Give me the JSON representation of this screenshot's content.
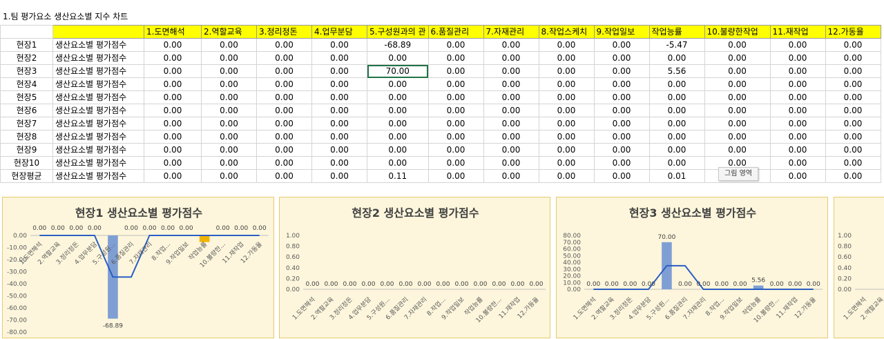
{
  "sheet_title": "1.팀 평가요소 생산요소별 지수 차트",
  "headers": [
    "1.도면해석",
    "2.역할교육",
    "3.정리정돈",
    "4.업무분담",
    "5.구성원과의 관",
    "6.품질관리",
    "7.자재관리",
    "8.작업스케치",
    "9.작업일보",
    "작업능률",
    "10.불량한작업",
    "11.재작업",
    "12.가동율"
  ],
  "rows": [
    {
      "site": "현장1",
      "label": "생산요소별 평가점수",
      "values": [
        "0.00",
        "0.00",
        "0.00",
        "0.00",
        "-68.89",
        "0.00",
        "0.00",
        "0.00",
        "0.00",
        "-5.47",
        "0.00",
        "0.00",
        "0.00"
      ]
    },
    {
      "site": "현장2",
      "label": "생산요소별 평가점수",
      "values": [
        "0.00",
        "0.00",
        "0.00",
        "0.00",
        "0.00",
        "0.00",
        "0.00",
        "0.00",
        "0.00",
        "0.00",
        "0.00",
        "0.00",
        "0.00"
      ]
    },
    {
      "site": "현장3",
      "label": "생산요소별 평가점수",
      "values": [
        "0.00",
        "0.00",
        "0.00",
        "0.00",
        "70.00",
        "0.00",
        "0.00",
        "0.00",
        "0.00",
        "5.56",
        "0.00",
        "0.00",
        "0.00"
      ]
    },
    {
      "site": "현장4",
      "label": "생산요소별 평가점수",
      "values": [
        "0.00",
        "0.00",
        "0.00",
        "0.00",
        "0.00",
        "0.00",
        "0.00",
        "0.00",
        "0.00",
        "0.00",
        "0.00",
        "0.00",
        "0.00"
      ]
    },
    {
      "site": "현장5",
      "label": "생산요소별 평가점수",
      "values": [
        "0.00",
        "0.00",
        "0.00",
        "0.00",
        "0.00",
        "0.00",
        "0.00",
        "0.00",
        "0.00",
        "0.00",
        "0.00",
        "0.00",
        "0.00"
      ]
    },
    {
      "site": "현장6",
      "label": "생산요소별 평가점수",
      "values": [
        "0.00",
        "0.00",
        "0.00",
        "0.00",
        "0.00",
        "0.00",
        "0.00",
        "0.00",
        "0.00",
        "0.00",
        "0.00",
        "0.00",
        "0.00"
      ]
    },
    {
      "site": "현장7",
      "label": "생산요소별 평가점수",
      "values": [
        "0.00",
        "0.00",
        "0.00",
        "0.00",
        "0.00",
        "0.00",
        "0.00",
        "0.00",
        "0.00",
        "0.00",
        "0.00",
        "0.00",
        "0.00"
      ]
    },
    {
      "site": "현장8",
      "label": "생산요소별 평가점수",
      "values": [
        "0.00",
        "0.00",
        "0.00",
        "0.00",
        "0.00",
        "0.00",
        "0.00",
        "0.00",
        "0.00",
        "0.00",
        "0.00",
        "0.00",
        "0.00"
      ]
    },
    {
      "site": "현장9",
      "label": "생산요소별 평가점수",
      "values": [
        "0.00",
        "0.00",
        "0.00",
        "0.00",
        "0.00",
        "0.00",
        "0.00",
        "0.00",
        "0.00",
        "0.00",
        "0.00",
        "0.00",
        "0.00"
      ]
    },
    {
      "site": "현장10",
      "label": "생산요소별 평가점수",
      "values": [
        "0.00",
        "0.00",
        "0.00",
        "0.00",
        "0.00",
        "0.00",
        "0.00",
        "0.00",
        "0.00",
        "0.00",
        "0.00",
        "0.00",
        "0.00"
      ]
    },
    {
      "site": "현장평균",
      "label": "생산요소별 평가점수",
      "values": [
        "0.00",
        "0.00",
        "0.00",
        "0.00",
        "0.11",
        "0.00",
        "0.00",
        "0.00",
        "0.00",
        "0.01",
        "0.00",
        "0.00",
        "0.00"
      ]
    }
  ],
  "selected_cell": {
    "row": 2,
    "col": 4
  },
  "tooltip": "그림 영역",
  "colors": {
    "header_fill": "#ffff00",
    "chart_bg": "#fdf6dc",
    "chart_border": "#e6c96a",
    "bar": "#7f9fd4",
    "line": "#2a5ec4",
    "highlight_bar": "#f0b400",
    "selection": "#217346"
  },
  "chart_data": [
    {
      "type": "bar",
      "title": "현장1 생산요소별 평가점수",
      "categories": [
        "1.도면해석",
        "2.역할교육",
        "3.정리정돈",
        "4.업무분담",
        "5.구성원...",
        "6.품질관리",
        "7.자재관리",
        "8.작업...",
        "9.작업일보",
        "작업능률",
        "10.불량한...",
        "11.재작업",
        "12.가동율"
      ],
      "values": [
        0,
        0,
        0,
        0,
        -68.89,
        0,
        0,
        0,
        0,
        -5.47,
        0,
        0,
        0
      ],
      "data_labels": [
        "0.00",
        "0.00",
        "0.00",
        "0.00",
        "-68.89",
        "0.00",
        "0.00",
        "0.00",
        "0.00",
        "",
        "0.00",
        "0.00",
        "0.00"
      ],
      "yticks": [
        "0.00",
        "-10.00",
        "-20.00",
        "-30.00",
        "-40.00",
        "-50.00",
        "-60.00",
        "-70.00",
        "-80.00"
      ],
      "ylim": [
        -80,
        0
      ],
      "trendline": [
        0,
        0,
        0,
        0,
        -34.4,
        -34.4,
        0,
        0,
        0,
        0,
        0,
        0,
        0
      ]
    },
    {
      "type": "bar",
      "title": "현장2 생산요소별 평가점수",
      "categories": [
        "1.도면해석",
        "2.역할교육",
        "3.정리정돈",
        "4.업무분담",
        "5.구성원...",
        "6.품질관리",
        "7.자재관리",
        "8.작업...",
        "9.작업일보",
        "작업능률",
        "10.불량한...",
        "11.재작업",
        "12.가동율"
      ],
      "values": [
        0,
        0,
        0,
        0,
        0,
        0,
        0,
        0,
        0,
        0,
        0,
        0,
        0
      ],
      "data_labels": [
        "0.00",
        "0.00",
        "0.00",
        "0.00",
        "0.00",
        "0.00",
        "0.00",
        "0.00",
        "0.00",
        "0.00",
        "0.00",
        "0.00",
        "0.00"
      ],
      "yticks": [
        "1.00",
        "0.80",
        "0.60",
        "0.40",
        "0.20",
        "0.00"
      ],
      "ylim": [
        0,
        1
      ]
    },
    {
      "type": "bar",
      "title": "현장3 생산요소별 평가점수",
      "categories": [
        "1.도면해석",
        "2.역할교육",
        "3.정리정돈",
        "4.업무분담",
        "5.구성원...",
        "6.품질관리",
        "7.자재관리",
        "8.작업...",
        "9.작업일보",
        "작업능률",
        "10.불량한...",
        "11.재작업",
        "12.가동율"
      ],
      "values": [
        0,
        0,
        0,
        0,
        70,
        0,
        0,
        0,
        0,
        5.56,
        0,
        0,
        0
      ],
      "data_labels": [
        "0.00",
        "0.00",
        "0.00",
        "0.00",
        "70.00",
        "0.00",
        "0.00",
        "0.00",
        "0.00",
        "5.56",
        "0.00",
        "0.00",
        "0.00"
      ],
      "yticks": [
        "80.00",
        "70.00",
        "60.00",
        "50.00",
        "40.00",
        "30.00",
        "20.00",
        "10.00",
        "0.00"
      ],
      "ylim": [
        0,
        80
      ],
      "trendline": [
        0,
        0,
        0,
        0,
        35,
        35,
        0,
        0,
        0,
        0,
        0,
        0,
        0
      ]
    },
    {
      "type": "bar",
      "title": "",
      "categories": [
        "1.도면해석",
        "2.역할교육"
      ],
      "values": [
        0,
        0
      ],
      "yticks": [
        "1.00",
        "0.80",
        "0.60",
        "0.40",
        "0.20",
        "0.00"
      ],
      "ylim": [
        0,
        1
      ]
    }
  ]
}
